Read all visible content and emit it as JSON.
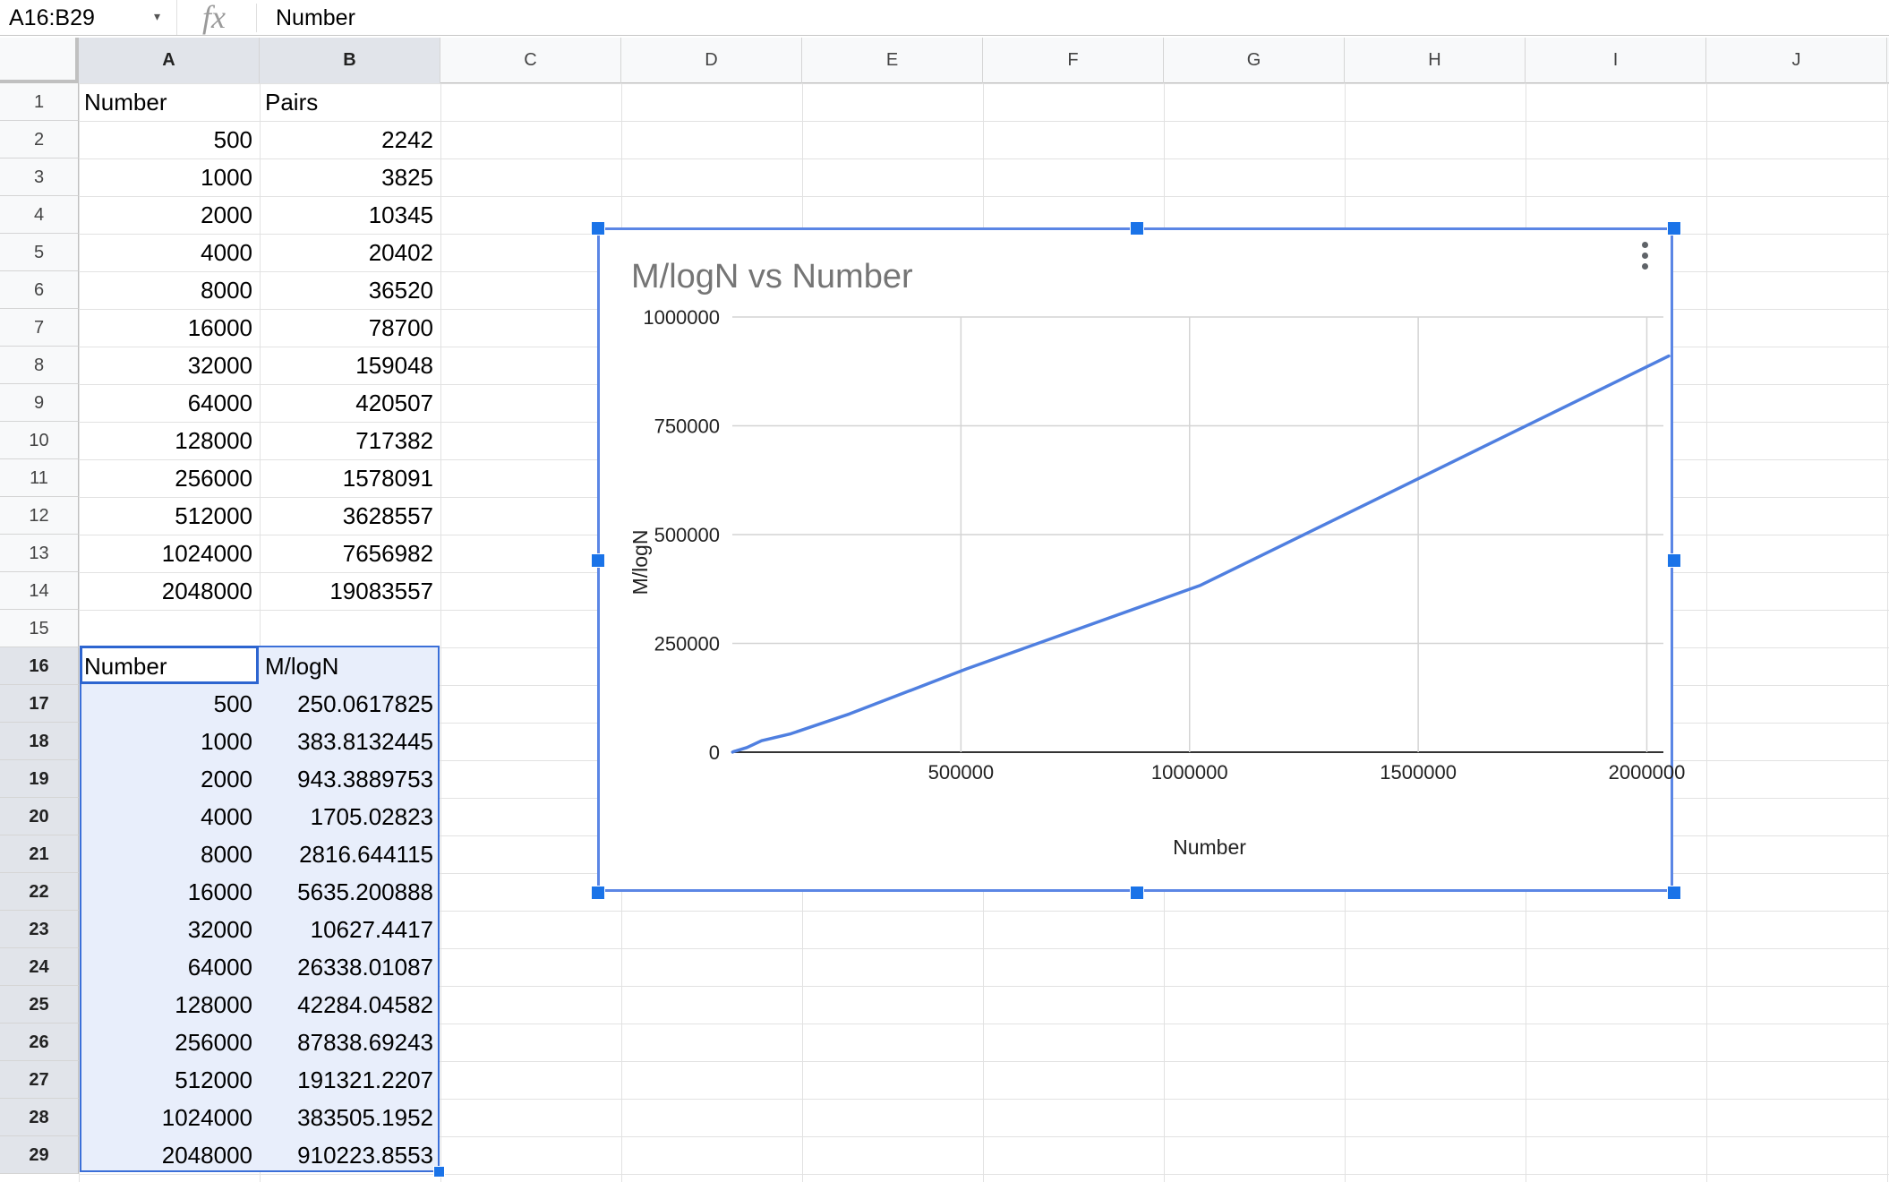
{
  "formula_bar": {
    "name_box": "A16:B29",
    "fx_icon": "fx",
    "formula": "Number"
  },
  "columns": [
    "A",
    "B",
    "C",
    "D",
    "E",
    "F",
    "G",
    "H",
    "I",
    "J"
  ],
  "rows": [
    "1",
    "2",
    "3",
    "4",
    "5",
    "6",
    "7",
    "8",
    "9",
    "10",
    "11",
    "12",
    "13",
    "14",
    "15",
    "16",
    "17",
    "18",
    "19",
    "20",
    "21",
    "22",
    "23",
    "24",
    "25",
    "26",
    "27",
    "28",
    "29"
  ],
  "cells": [
    [
      "Number",
      "Pairs"
    ],
    [
      "500",
      "2242"
    ],
    [
      "1000",
      "3825"
    ],
    [
      "2000",
      "10345"
    ],
    [
      "4000",
      "20402"
    ],
    [
      "8000",
      "36520"
    ],
    [
      "16000",
      "78700"
    ],
    [
      "32000",
      "159048"
    ],
    [
      "64000",
      "420507"
    ],
    [
      "128000",
      "717382"
    ],
    [
      "256000",
      "1578091"
    ],
    [
      "512000",
      "3628557"
    ],
    [
      "1024000",
      "7656982"
    ],
    [
      "2048000",
      "19083557"
    ],
    [
      "",
      ""
    ],
    [
      "Number",
      "M/logN"
    ],
    [
      "500",
      "250.0617825"
    ],
    [
      "1000",
      "383.8132445"
    ],
    [
      "2000",
      "943.3889753"
    ],
    [
      "4000",
      "1705.02823"
    ],
    [
      "8000",
      "2816.644115"
    ],
    [
      "16000",
      "5635.200888"
    ],
    [
      "32000",
      "10627.4417"
    ],
    [
      "64000",
      "26338.01087"
    ],
    [
      "128000",
      "42284.04582"
    ],
    [
      "256000",
      "87838.69243"
    ],
    [
      "512000",
      "191321.2207"
    ],
    [
      "1024000",
      "383505.1952"
    ],
    [
      "2048000",
      "910223.8553"
    ]
  ],
  "colors": {
    "selection_fill": "#e8eefb",
    "selection_border": "#3b6fd8",
    "chart_line": "#4f7fe0",
    "header_bg": "#f8f9fa"
  },
  "chart_menu_icon": "more-vert-icon",
  "chart_data": {
    "type": "line",
    "title": "M/logN vs Number",
    "xlabel": "Number",
    "ylabel": "M/logN",
    "x": [
      500,
      1000,
      2000,
      4000,
      8000,
      16000,
      32000,
      64000,
      128000,
      256000,
      512000,
      1024000,
      2048000
    ],
    "series": [
      {
        "values": [
          250.0617825,
          383.8132445,
          943.3889753,
          1705.02823,
          2816.644115,
          5635.200888,
          10627.4417,
          26338.01087,
          42284.04582,
          87838.69243,
          191321.2207,
          383505.1952,
          910223.8553
        ]
      }
    ],
    "xlim": [
      0,
      2048000
    ],
    "ylim": [
      0,
      1000000
    ],
    "xticks": [
      "500000",
      "1000000",
      "1500000",
      "2000000"
    ],
    "yticks": [
      "0",
      "250000",
      "500000",
      "750000",
      "1000000"
    ],
    "grid": true,
    "legend": "none"
  }
}
